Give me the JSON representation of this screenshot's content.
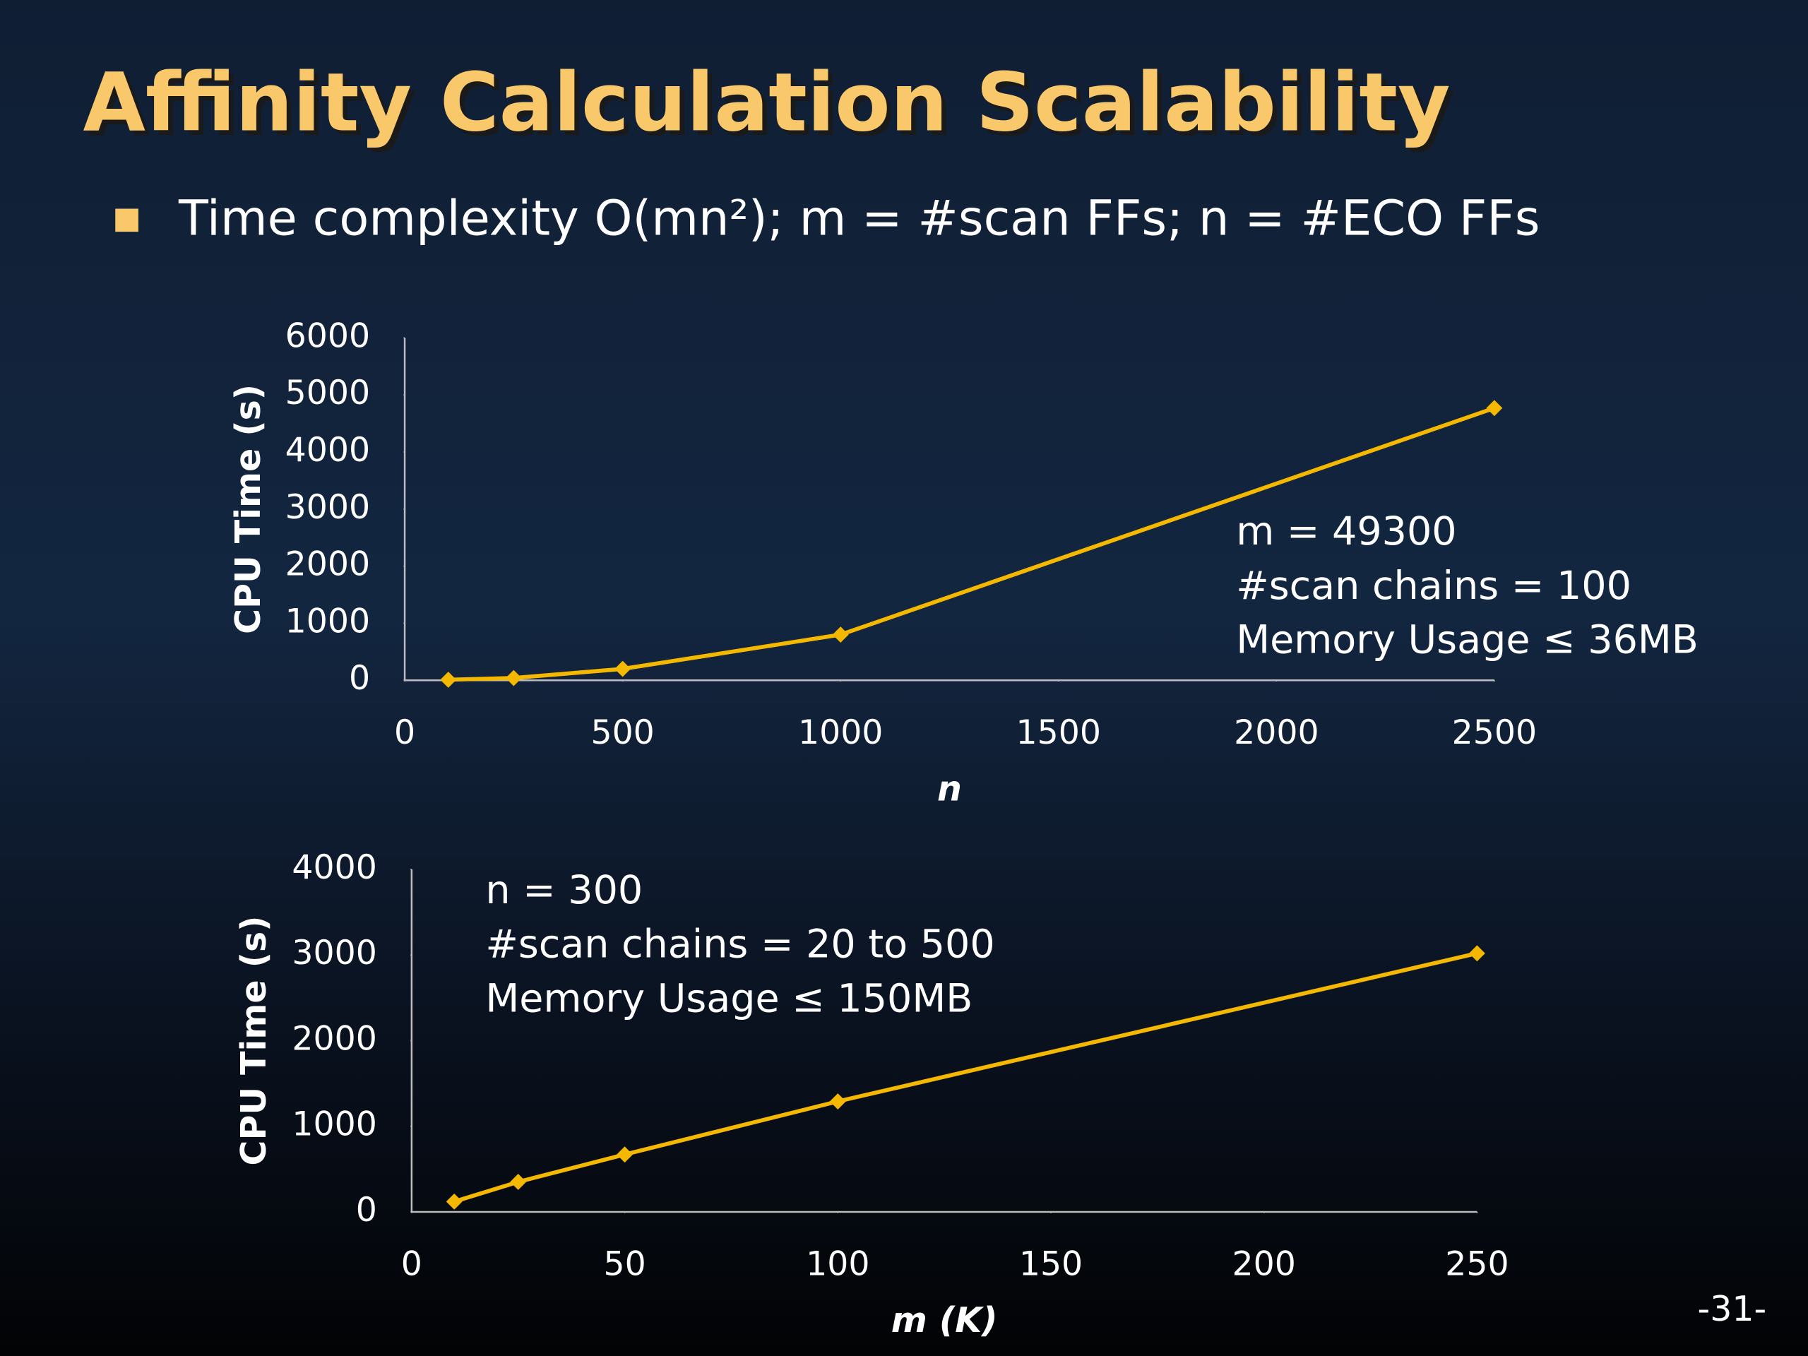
{
  "title": "Affinity Calculation Scalability",
  "bullet": "Time complexity O(mn²); m = #scan FFs; n = #ECO FFs",
  "slide_number": "-31-",
  "chart_data": [
    {
      "type": "line",
      "xlabel": "n",
      "ylabel": "CPU Time (s)",
      "x": [
        100,
        250,
        500,
        1000,
        2500
      ],
      "series": [
        {
          "color": "#f5b800",
          "values": [
            10,
            40,
            200,
            800,
            4770
          ]
        }
      ],
      "xlim": [
        0,
        2500
      ],
      "xticks": [
        0,
        500,
        1000,
        1500,
        2000,
        2500
      ],
      "ylim": [
        0,
        6000
      ],
      "yticks": [
        0,
        1000,
        2000,
        3000,
        4000,
        5000,
        6000
      ],
      "annotations": [
        "m = 49300",
        "#scan chains = 100",
        "Memory Usage ≤ 36MB"
      ]
    },
    {
      "type": "line",
      "xlabel": "m (K)",
      "ylabel": "CPU Time (s)",
      "x": [
        10,
        25,
        50,
        100,
        250
      ],
      "series": [
        {
          "color": "#f5b800",
          "values": [
            120,
            350,
            670,
            1290,
            3020
          ]
        }
      ],
      "xlim": [
        0,
        250
      ],
      "xticks": [
        0,
        50,
        100,
        150,
        200,
        250
      ],
      "ylim": [
        0,
        4000
      ],
      "yticks": [
        0,
        1000,
        2000,
        3000,
        4000
      ],
      "annotations": [
        "n = 300",
        "#scan chains = 20 to 500",
        "Memory Usage ≤ 150MB"
      ]
    }
  ]
}
